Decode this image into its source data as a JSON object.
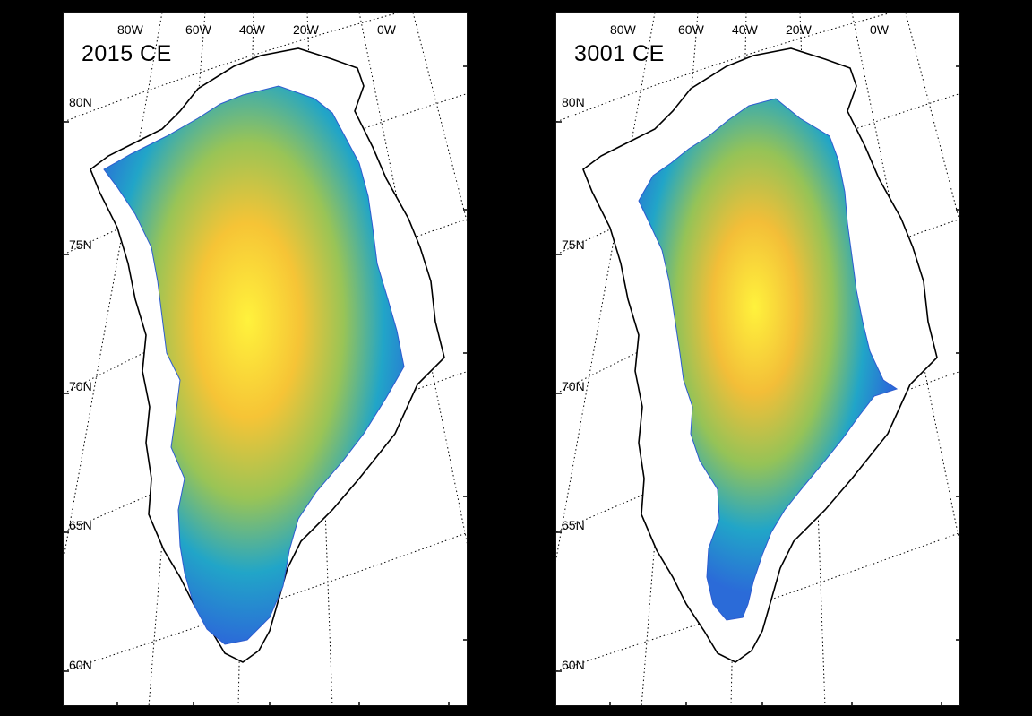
{
  "panels": [
    {
      "title": "2015 CE"
    },
    {
      "title": "3001 CE"
    }
  ],
  "longitude_labels": [
    "80W",
    "60W",
    "40W",
    "20W",
    "0W"
  ],
  "latitude_labels": [
    "80N",
    "75N",
    "70N",
    "65N",
    "60N"
  ],
  "colormap": {
    "low": "#2b6bd8",
    "mid1": "#20a6c8",
    "mid2": "#8dc05a",
    "high1": "#f2b233",
    "high2": "#fff23c"
  }
}
